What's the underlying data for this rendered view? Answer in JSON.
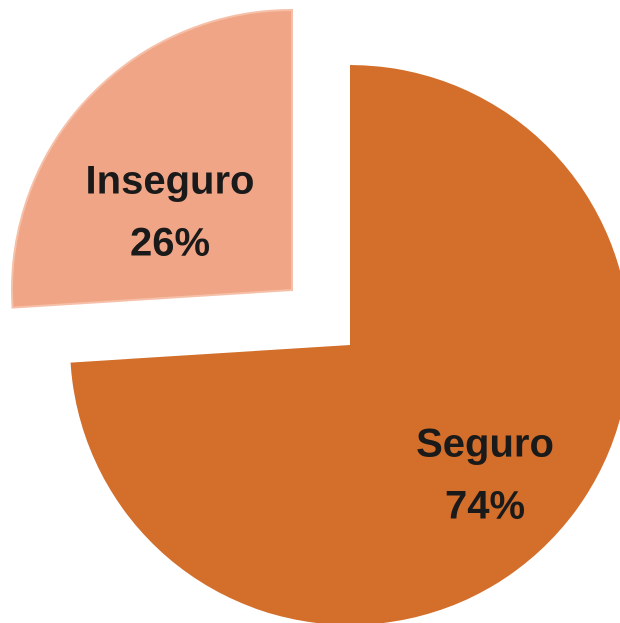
{
  "chart_data": {
    "type": "pie",
    "categories": [
      "Seguro",
      "Inseguro"
    ],
    "values": [
      74,
      26
    ],
    "value_labels": [
      "74%",
      "26%"
    ],
    "colors": [
      "#d36e2b",
      "#f0a587"
    ]
  }
}
